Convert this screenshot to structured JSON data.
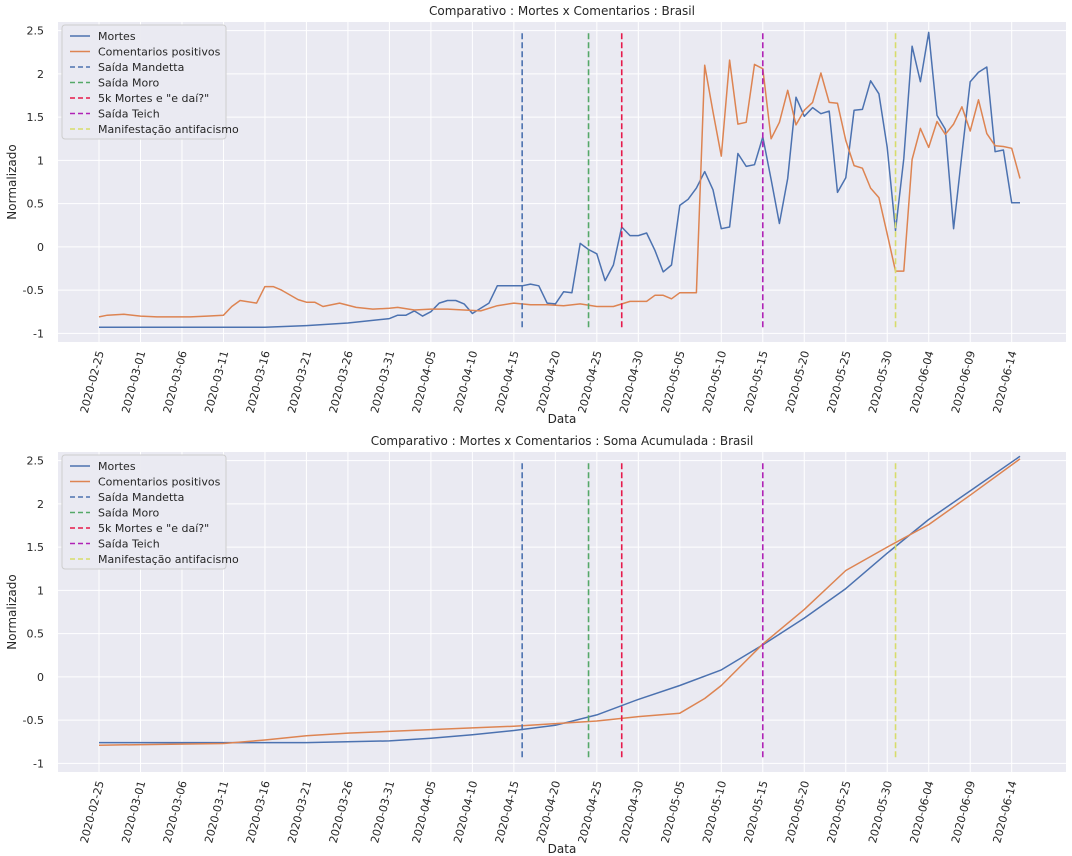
{
  "chart_data": [
    {
      "type": "line",
      "title": "Comparativo : Mortes x Comentarios : Brasil",
      "xlabel": "Data",
      "ylabel": "Normalizado",
      "ylim": [
        -1.1,
        2.6
      ],
      "yticks": [
        -1.0,
        -0.5,
        0.0,
        0.5,
        1.0,
        1.5,
        2.0,
        2.5
      ],
      "grid": true,
      "legend_position": "upper-left",
      "series": [
        {
          "name": "Mortes",
          "color": "#4c72b0",
          "x": [
            "2020-02-25",
            "2020-03-16",
            "2020-03-21",
            "2020-03-26",
            "2020-03-31",
            "2020-04-01",
            "2020-04-02",
            "2020-04-03",
            "2020-04-04",
            "2020-04-05",
            "2020-04-06",
            "2020-04-07",
            "2020-04-08",
            "2020-04-09",
            "2020-04-10",
            "2020-04-11",
            "2020-04-12",
            "2020-04-13",
            "2020-04-14",
            "2020-04-15",
            "2020-04-16",
            "2020-04-17",
            "2020-04-18",
            "2020-04-19",
            "2020-04-20",
            "2020-04-21",
            "2020-04-22",
            "2020-04-23",
            "2020-04-24",
            "2020-04-25",
            "2020-04-26",
            "2020-04-27",
            "2020-04-28",
            "2020-04-29",
            "2020-04-30",
            "2020-05-01",
            "2020-05-02",
            "2020-05-03",
            "2020-05-04",
            "2020-05-05",
            "2020-05-06",
            "2020-05-07",
            "2020-05-08",
            "2020-05-09",
            "2020-05-10",
            "2020-05-11",
            "2020-05-12",
            "2020-05-13",
            "2020-05-14",
            "2020-05-15",
            "2020-05-16",
            "2020-05-17",
            "2020-05-18",
            "2020-05-19",
            "2020-05-20",
            "2020-05-21",
            "2020-05-22",
            "2020-05-23",
            "2020-05-24",
            "2020-05-25",
            "2020-05-26",
            "2020-05-27",
            "2020-05-28",
            "2020-05-29",
            "2020-05-30",
            "2020-05-31",
            "2020-06-01",
            "2020-06-02",
            "2020-06-03",
            "2020-06-04",
            "2020-06-05",
            "2020-06-06",
            "2020-06-07",
            "2020-06-08",
            "2020-06-09",
            "2020-06-10",
            "2020-06-11",
            "2020-06-12",
            "2020-06-13",
            "2020-06-14",
            "2020-06-15"
          ],
          "y": [
            -0.93,
            -0.93,
            -0.91,
            -0.88,
            -0.83,
            -0.79,
            -0.79,
            -0.74,
            -0.8,
            -0.75,
            -0.65,
            -0.62,
            -0.62,
            -0.66,
            -0.77,
            -0.71,
            -0.65,
            -0.45,
            -0.45,
            -0.45,
            -0.45,
            -0.43,
            -0.45,
            -0.65,
            -0.66,
            -0.52,
            -0.53,
            0.04,
            -0.03,
            -0.08,
            -0.39,
            -0.21,
            0.23,
            0.13,
            0.13,
            0.16,
            -0.04,
            -0.29,
            -0.21,
            0.48,
            0.55,
            0.68,
            0.87,
            0.66,
            0.21,
            0.23,
            1.08,
            0.93,
            0.95,
            1.27,
            0.78,
            0.27,
            0.79,
            1.73,
            1.51,
            1.61,
            1.54,
            1.57,
            0.63,
            0.8,
            1.58,
            1.59,
            1.92,
            1.77,
            1.15,
            0.19,
            1.02,
            2.32,
            1.91,
            2.48,
            1.52,
            1.36,
            0.21,
            1.07,
            1.91,
            2.02,
            2.08,
            1.1,
            1.12,
            0.51,
            0.51
          ]
        },
        {
          "name": "Comentarios positivos",
          "color": "#dd8452",
          "x": [
            "2020-02-25",
            "2020-02-26",
            "2020-02-28",
            "2020-03-01",
            "2020-03-03",
            "2020-03-05",
            "2020-03-07",
            "2020-03-09",
            "2020-03-11",
            "2020-03-12",
            "2020-03-13",
            "2020-03-15",
            "2020-03-16",
            "2020-03-17",
            "2020-03-18",
            "2020-03-20",
            "2020-03-21",
            "2020-03-22",
            "2020-03-23",
            "2020-03-25",
            "2020-03-27",
            "2020-03-29",
            "2020-03-31",
            "2020-04-01",
            "2020-04-03",
            "2020-04-05",
            "2020-04-07",
            "2020-04-09",
            "2020-04-11",
            "2020-04-13",
            "2020-04-15",
            "2020-04-17",
            "2020-04-19",
            "2020-04-21",
            "2020-04-23",
            "2020-04-25",
            "2020-04-27",
            "2020-04-29",
            "2020-05-01",
            "2020-05-02",
            "2020-05-03",
            "2020-05-04",
            "2020-05-05",
            "2020-05-06",
            "2020-05-07",
            "2020-05-08",
            "2020-05-09",
            "2020-05-10",
            "2020-05-11",
            "2020-05-12",
            "2020-05-13",
            "2020-05-14",
            "2020-05-15",
            "2020-05-16",
            "2020-05-17",
            "2020-05-18",
            "2020-05-19",
            "2020-05-20",
            "2020-05-21",
            "2020-05-22",
            "2020-05-23",
            "2020-05-24",
            "2020-05-25",
            "2020-05-26",
            "2020-05-27",
            "2020-05-28",
            "2020-05-29",
            "2020-05-30",
            "2020-05-31",
            "2020-06-01",
            "2020-06-02",
            "2020-06-03",
            "2020-06-04",
            "2020-06-05",
            "2020-06-06",
            "2020-06-07",
            "2020-06-08",
            "2020-06-09",
            "2020-06-10",
            "2020-06-11",
            "2020-06-12",
            "2020-06-13",
            "2020-06-14",
            "2020-06-15"
          ],
          "y": [
            -0.81,
            -0.79,
            -0.78,
            -0.8,
            -0.81,
            -0.81,
            -0.81,
            -0.8,
            -0.79,
            -0.69,
            -0.62,
            -0.65,
            -0.46,
            -0.46,
            -0.5,
            -0.61,
            -0.64,
            -0.64,
            -0.69,
            -0.65,
            -0.7,
            -0.72,
            -0.71,
            -0.7,
            -0.73,
            -0.72,
            -0.72,
            -0.73,
            -0.74,
            -0.68,
            -0.65,
            -0.67,
            -0.67,
            -0.68,
            -0.66,
            -0.69,
            -0.69,
            -0.63,
            -0.63,
            -0.56,
            -0.56,
            -0.6,
            -0.53,
            -0.53,
            -0.53,
            2.1,
            1.56,
            1.05,
            2.16,
            1.42,
            1.44,
            2.11,
            2.06,
            1.25,
            1.44,
            1.81,
            1.41,
            1.58,
            1.67,
            2.01,
            1.67,
            1.66,
            1.23,
            0.94,
            0.91,
            0.68,
            0.57,
            0.15,
            -0.28,
            -0.28,
            1.01,
            1.37,
            1.15,
            1.45,
            1.3,
            1.42,
            1.62,
            1.34,
            1.7,
            1.31,
            1.17,
            1.16,
            1.14,
            0.79
          ]
        }
      ],
      "vlines": [
        {
          "name": "Saída Mandetta",
          "x": "2020-04-16",
          "color": "#4c72b0"
        },
        {
          "name": "Saída Moro",
          "x": "2020-04-24",
          "color": "#55a868"
        },
        {
          "name": "5k Mortes e \"e daí?\"",
          "x": "2020-04-28",
          "color": "#e6194b"
        },
        {
          "name": "Saída Teich",
          "x": "2020-05-15",
          "color": "#b023b6"
        },
        {
          "name": "Manifestação antifacismo",
          "x": "2020-05-31",
          "color": "#d7dc6b"
        }
      ],
      "vline_range": [
        -0.93,
        2.47
      ]
    },
    {
      "type": "line",
      "title": "Comparativo : Mortes x Comentarios : Soma Acumulada : Brasil",
      "xlabel": "Data",
      "ylabel": "Normalizado",
      "ylim": [
        -1.1,
        2.6
      ],
      "yticks": [
        -1.0,
        -0.5,
        0.0,
        0.5,
        1.0,
        1.5,
        2.0,
        2.5
      ],
      "grid": true,
      "legend_position": "upper-left",
      "series": [
        {
          "name": "Mortes",
          "color": "#4c72b0",
          "x": [
            "2020-02-25",
            "2020-03-11",
            "2020-03-21",
            "2020-03-31",
            "2020-04-05",
            "2020-04-10",
            "2020-04-15",
            "2020-04-20",
            "2020-04-25",
            "2020-04-30",
            "2020-05-05",
            "2020-05-10",
            "2020-05-15",
            "2020-05-20",
            "2020-05-25",
            "2020-05-30",
            "2020-06-04",
            "2020-06-09",
            "2020-06-15"
          ],
          "y": [
            -0.76,
            -0.76,
            -0.76,
            -0.74,
            -0.71,
            -0.67,
            -0.62,
            -0.56,
            -0.44,
            -0.26,
            -0.1,
            0.08,
            0.37,
            0.68,
            1.02,
            1.43,
            1.82,
            2.15,
            2.55
          ]
        },
        {
          "name": "Comentarios positivos",
          "color": "#dd8452",
          "x": [
            "2020-02-25",
            "2020-03-11",
            "2020-03-16",
            "2020-03-21",
            "2020-03-26",
            "2020-03-31",
            "2020-04-05",
            "2020-04-10",
            "2020-04-15",
            "2020-04-20",
            "2020-04-25",
            "2020-04-30",
            "2020-05-05",
            "2020-05-08",
            "2020-05-10",
            "2020-05-15",
            "2020-05-20",
            "2020-05-25",
            "2020-05-30",
            "2020-06-04",
            "2020-06-09",
            "2020-06-15"
          ],
          "y": [
            -0.79,
            -0.77,
            -0.73,
            -0.68,
            -0.65,
            -0.63,
            -0.61,
            -0.59,
            -0.57,
            -0.54,
            -0.51,
            -0.46,
            -0.42,
            -0.25,
            -0.1,
            0.38,
            0.78,
            1.23,
            1.5,
            1.76,
            2.1,
            2.52
          ]
        }
      ],
      "vlines": [
        {
          "name": "Saída Mandetta",
          "x": "2020-04-16",
          "color": "#4c72b0"
        },
        {
          "name": "Saída Moro",
          "x": "2020-04-24",
          "color": "#55a868"
        },
        {
          "name": "5k Mortes e \"e daí?\"",
          "x": "2020-04-28",
          "color": "#e6194b"
        },
        {
          "name": "Saída Teich",
          "x": "2020-05-15",
          "color": "#b023b6"
        },
        {
          "name": "Manifestação antifacismo",
          "x": "2020-05-31",
          "color": "#d7dc6b"
        }
      ],
      "vline_range": [
        -0.93,
        2.47
      ]
    }
  ],
  "x_ticks": [
    "2020-02-25",
    "2020-03-01",
    "2020-03-06",
    "2020-03-11",
    "2020-03-16",
    "2020-03-21",
    "2020-03-26",
    "2020-03-31",
    "2020-04-05",
    "2020-04-10",
    "2020-04-15",
    "2020-04-20",
    "2020-04-25",
    "2020-04-30",
    "2020-05-05",
    "2020-05-10",
    "2020-05-15",
    "2020-05-20",
    "2020-05-25",
    "2020-05-30",
    "2020-06-04",
    "2020-06-09",
    "2020-06-14"
  ]
}
